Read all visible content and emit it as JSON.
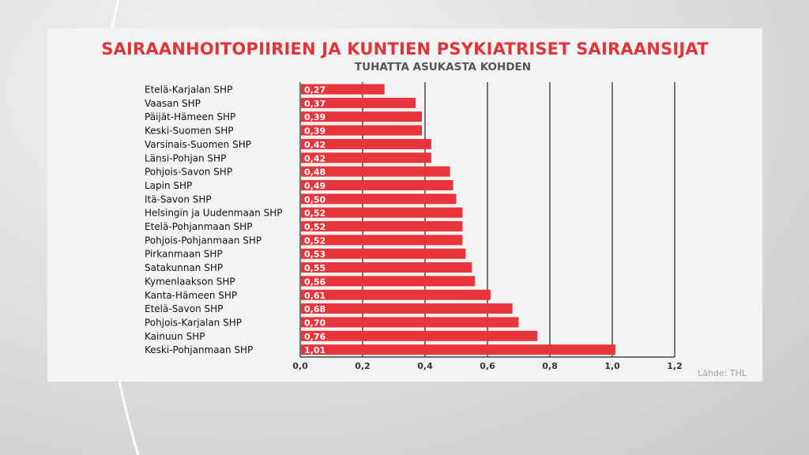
{
  "chart_data": {
    "type": "bar",
    "orientation": "horizontal",
    "title": "SAIRAANHOITOPIIRIEN JA KUNTIEN PSYKIATRISET SAIRAANSIJAT",
    "subtitle": "TUHATTA ASUKASTA KOHDEN",
    "source": "Lähde: THL",
    "categories": [
      "Etelä-Karjalan SHP",
      "Vaasan SHP",
      "Päijät-Hämeen SHP",
      "Keski-Suomen SHP",
      "Varsinais-Suomen SHP",
      "Länsi-Pohjan SHP",
      "Pohjois-Savon SHP",
      "Lapin SHP",
      "Itä-Savon SHP",
      "Helsingin ja Uudenmaan SHP",
      "Etelä-Pohjanmaan SHP",
      "Pohjois-Pohjanmaan SHP",
      "Pirkanmaan SHP",
      "Satakunnan SHP",
      "Kymenlaakson SHP",
      "Kanta-Hämeen SHP",
      "Etelä-Savon SHP",
      "Pohjois-Karjalan SHP",
      "Kainuun SHP",
      "Keski-Pohjanmaan SHP"
    ],
    "values": [
      0.27,
      0.37,
      0.39,
      0.39,
      0.42,
      0.42,
      0.48,
      0.49,
      0.5,
      0.52,
      0.52,
      0.52,
      0.53,
      0.55,
      0.56,
      0.61,
      0.68,
      0.7,
      0.76,
      1.01
    ],
    "data_labels": [
      "0,27",
      "0,37",
      "0,39",
      "0,39",
      "0,42",
      "0,42",
      "0,48",
      "0,49",
      "0,50",
      "0,52",
      "0,52",
      "0,52",
      "0,53",
      "0,55",
      "0,56",
      "0,61",
      "0,68",
      "0,70",
      "0,76",
      "1,01"
    ],
    "xlim": [
      0,
      1.2
    ],
    "xticks": [
      0,
      0.2,
      0.4,
      0.6,
      0.8,
      1.0,
      1.2
    ],
    "xtick_labels": [
      "0,0",
      "0,2",
      "0,4",
      "0,6",
      "0,8",
      "1,0",
      "1,2"
    ],
    "grid": true,
    "bar_color": "#e8343b"
  }
}
